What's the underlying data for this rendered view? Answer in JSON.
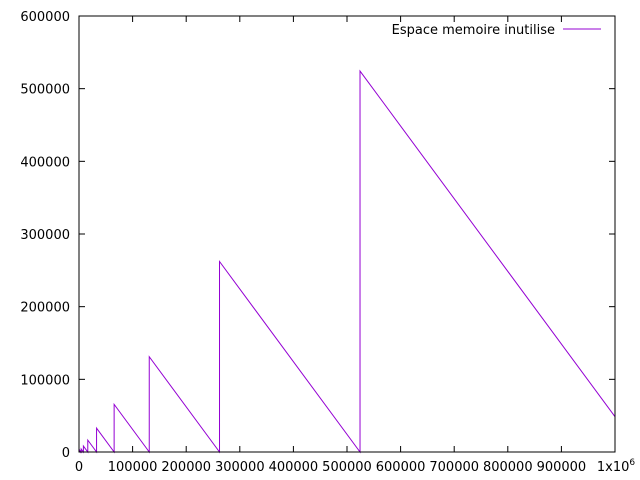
{
  "chart_data": {
    "type": "line",
    "title": "",
    "xlabel": "",
    "ylabel": "",
    "xlim": [
      0,
      1000000
    ],
    "ylim": [
      0,
      600000
    ],
    "xticks": [
      0,
      100000,
      200000,
      300000,
      400000,
      500000,
      600000,
      700000,
      800000,
      900000
    ],
    "xtick_labels": [
      "0",
      "100000",
      "200000",
      "300000",
      "400000",
      "500000",
      "600000",
      "700000",
      "800000",
      "900000"
    ],
    "x_last_tick": {
      "value": 1000000,
      "base": "1x10",
      "exponent": "6"
    },
    "yticks": [
      0,
      100000,
      200000,
      300000,
      400000,
      500000,
      600000
    ],
    "ytick_labels": [
      "0",
      "100000",
      "200000",
      "300000",
      "400000",
      "500000",
      "600000"
    ],
    "grid": false,
    "legend_position": "top-right",
    "series": [
      {
        "name": "Espace memoire inutilise",
        "color": "#9400d3",
        "x": [
          0,
          1024,
          2048,
          2048,
          4096,
          4096,
          8192,
          8192,
          16384,
          16384,
          32768,
          32768,
          65536,
          65536,
          131072,
          131072,
          262144,
          262144,
          524288,
          524288,
          1000000
        ],
        "y": [
          0,
          1024,
          0,
          2048,
          0,
          4096,
          0,
          8192,
          0,
          16384,
          0,
          32768,
          0,
          65536,
          0,
          131072,
          0,
          262144,
          0,
          524288,
          48576
        ]
      }
    ]
  }
}
